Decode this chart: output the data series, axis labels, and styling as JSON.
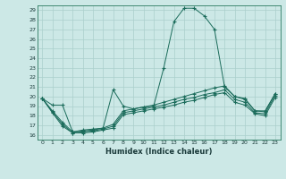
{
  "xlabel": "Humidex (Indice chaleur)",
  "ylabel": "",
  "background_color": "#cce8e6",
  "grid_color": "#aacfcc",
  "line_color": "#1a6b5a",
  "xlim": [
    -0.5,
    23.5
  ],
  "ylim": [
    15.5,
    29.5
  ],
  "xticks": [
    0,
    1,
    2,
    3,
    4,
    5,
    6,
    7,
    8,
    9,
    10,
    11,
    12,
    13,
    14,
    15,
    16,
    17,
    18,
    19,
    20,
    21,
    22,
    23
  ],
  "yticks": [
    16,
    17,
    18,
    19,
    20,
    21,
    22,
    23,
    24,
    25,
    26,
    27,
    28,
    29
  ],
  "line1_x": [
    0,
    1,
    2,
    3,
    4,
    5,
    6,
    7,
    8,
    9,
    10,
    11,
    12,
    13,
    14,
    15,
    16,
    17,
    18,
    19,
    20,
    21,
    22,
    23
  ],
  "line1_y": [
    19.8,
    19.1,
    19.1,
    16.3,
    16.5,
    16.6,
    16.7,
    20.7,
    19.0,
    18.7,
    18.9,
    19.0,
    23.0,
    27.8,
    29.2,
    29.2,
    28.4,
    27.0,
    21.0,
    20.0,
    19.8,
    18.5,
    18.5,
    20.3
  ],
  "line2_x": [
    0,
    1,
    2,
    3,
    4,
    5,
    6,
    7,
    8,
    9,
    10,
    11,
    12,
    13,
    14,
    15,
    16,
    17,
    18,
    19,
    20,
    21,
    22,
    23
  ],
  "line2_y": [
    19.8,
    18.5,
    17.3,
    16.3,
    16.4,
    16.5,
    16.7,
    17.1,
    18.5,
    18.7,
    18.9,
    19.1,
    19.4,
    19.7,
    20.0,
    20.3,
    20.6,
    20.9,
    21.1,
    20.0,
    19.7,
    18.5,
    18.4,
    20.3
  ],
  "line3_x": [
    0,
    1,
    2,
    3,
    4,
    5,
    6,
    7,
    8,
    9,
    10,
    11,
    12,
    13,
    14,
    15,
    16,
    17,
    18,
    19,
    20,
    21,
    22,
    23
  ],
  "line3_y": [
    19.8,
    18.4,
    17.1,
    16.2,
    16.3,
    16.4,
    16.6,
    16.9,
    18.3,
    18.5,
    18.7,
    18.9,
    19.1,
    19.4,
    19.7,
    19.9,
    20.2,
    20.4,
    20.7,
    19.7,
    19.4,
    18.3,
    18.2,
    20.1
  ],
  "line4_x": [
    0,
    1,
    2,
    3,
    4,
    5,
    6,
    7,
    8,
    9,
    10,
    11,
    12,
    13,
    14,
    15,
    16,
    17,
    18,
    19,
    20,
    21,
    22,
    23
  ],
  "line4_y": [
    19.8,
    18.3,
    16.9,
    16.2,
    16.2,
    16.3,
    16.5,
    16.7,
    18.1,
    18.3,
    18.5,
    18.7,
    18.9,
    19.1,
    19.4,
    19.6,
    19.9,
    20.2,
    20.4,
    19.4,
    19.1,
    18.2,
    18.0,
    19.9
  ]
}
